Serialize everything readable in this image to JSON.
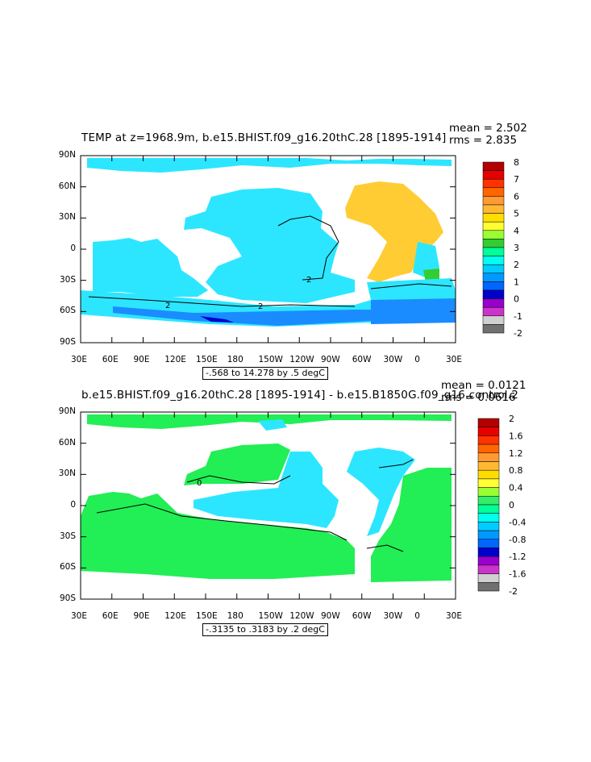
{
  "panel1": {
    "title": "TEMP at z=1968.9m, b.e15.BHIST.f09_g16.20thC.28 [1895-1914]",
    "mean": "mean = 2.502",
    "rms": "rms = 2.835",
    "range": "-.568 to 14.278 by .5 degC",
    "contour_labels": [
      "2",
      "2",
      "2"
    ],
    "colorbar": {
      "labels": [
        "8",
        "7",
        "6",
        "5",
        "4",
        "3",
        "2",
        "1",
        "0",
        "-1",
        "-2"
      ],
      "colors": [
        "#b30000",
        "#e60000",
        "#ff3300",
        "#ff6600",
        "#ff9933",
        "#ffb833",
        "#ffdd00",
        "#ffff33",
        "#99ff33",
        "#33cc33",
        "#00ff99",
        "#00ffee",
        "#00ccff",
        "#0099ff",
        "#0066ff",
        "#0000cc",
        "#9900cc",
        "#cc33cc",
        "#d0d0d0",
        "#707070"
      ]
    }
  },
  "panel2": {
    "title": "b.e15.BHIST.f09_g16.20thC.28 [1895-1914] - b.e15.B1850G.f09_g16.control.2",
    "mean": "mean = 0.0121",
    "rms": "rms = 0.0616",
    "range": "-.3135 to .3183 by .2 degC",
    "contour_labels": [
      "0"
    ],
    "colorbar": {
      "labels": [
        "2",
        "1.6",
        "1.2",
        "0.8",
        "0.4",
        "0",
        "-0.4",
        "-0.8",
        "-1.2",
        "-1.6",
        "-2"
      ],
      "colors": [
        "#b30000",
        "#e60000",
        "#ff3300",
        "#ff6600",
        "#ff9933",
        "#ffb833",
        "#ffdd00",
        "#ffff33",
        "#99ff33",
        "#33ee66",
        "#00ff99",
        "#00ffee",
        "#00ccff",
        "#0099ff",
        "#0066ff",
        "#0000cc",
        "#9900cc",
        "#cc33cc",
        "#d0d0d0",
        "#707070"
      ]
    }
  },
  "axes": {
    "lat_labels": [
      "90N",
      "60N",
      "30N",
      "0",
      "30S",
      "60S",
      "90S"
    ],
    "lon_labels": [
      "30E",
      "60E",
      "90E",
      "120E",
      "150E",
      "180",
      "150W",
      "120W",
      "90W",
      "60W",
      "30W",
      "0",
      "30E"
    ]
  },
  "colors": {
    "land": "#ffffff",
    "ocean_level2": "#2ce6ff",
    "ocean_level1": "#1a8cff",
    "atlantic_warm": "#ffcc33",
    "diff_positive": "#22ee55",
    "diff_negative": "#2ce6ff"
  }
}
